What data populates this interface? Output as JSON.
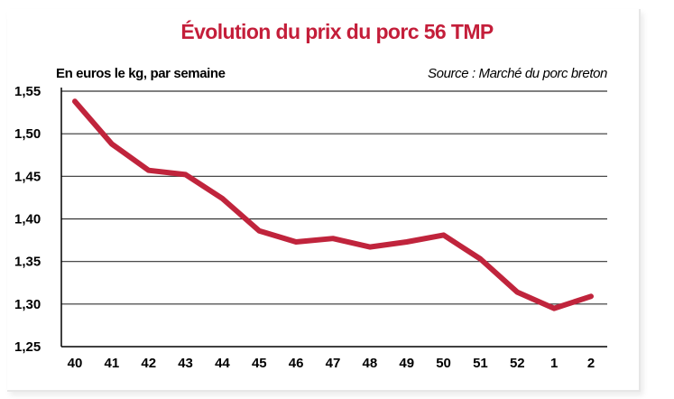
{
  "title": "Évolution du prix du porc 56 TMP",
  "subtitle": "En euros le kg, par semaine",
  "source": "Source : Marché du porc breton",
  "colors": {
    "title": "#c41e3a",
    "line": "#c0243c",
    "grid": "#333333",
    "axis": "#000000"
  },
  "chart_data": {
    "type": "line",
    "title": "Évolution du prix du porc 56 TMP",
    "subtitle": "En euros le kg, par semaine",
    "xlabel": "",
    "ylabel": "",
    "categories": [
      "40",
      "41",
      "42",
      "43",
      "44",
      "45",
      "46",
      "47",
      "48",
      "49",
      "50",
      "51",
      "52",
      "1",
      "2"
    ],
    "y_tick_labels": [
      "1,25",
      "1,30",
      "1,35",
      "1,40",
      "1,45",
      "1,50",
      "1,55"
    ],
    "y_ticks": [
      1.25,
      1.3,
      1.35,
      1.4,
      1.45,
      1.5,
      1.55
    ],
    "ylim": [
      1.25,
      1.55
    ],
    "grid": "horizontal",
    "series": [
      {
        "values": [
          1.538,
          1.488,
          1.457,
          1.452,
          1.424,
          1.386,
          1.373,
          1.377,
          1.367,
          1.373,
          1.381,
          1.353,
          1.314,
          1.295,
          1.309
        ]
      }
    ]
  }
}
